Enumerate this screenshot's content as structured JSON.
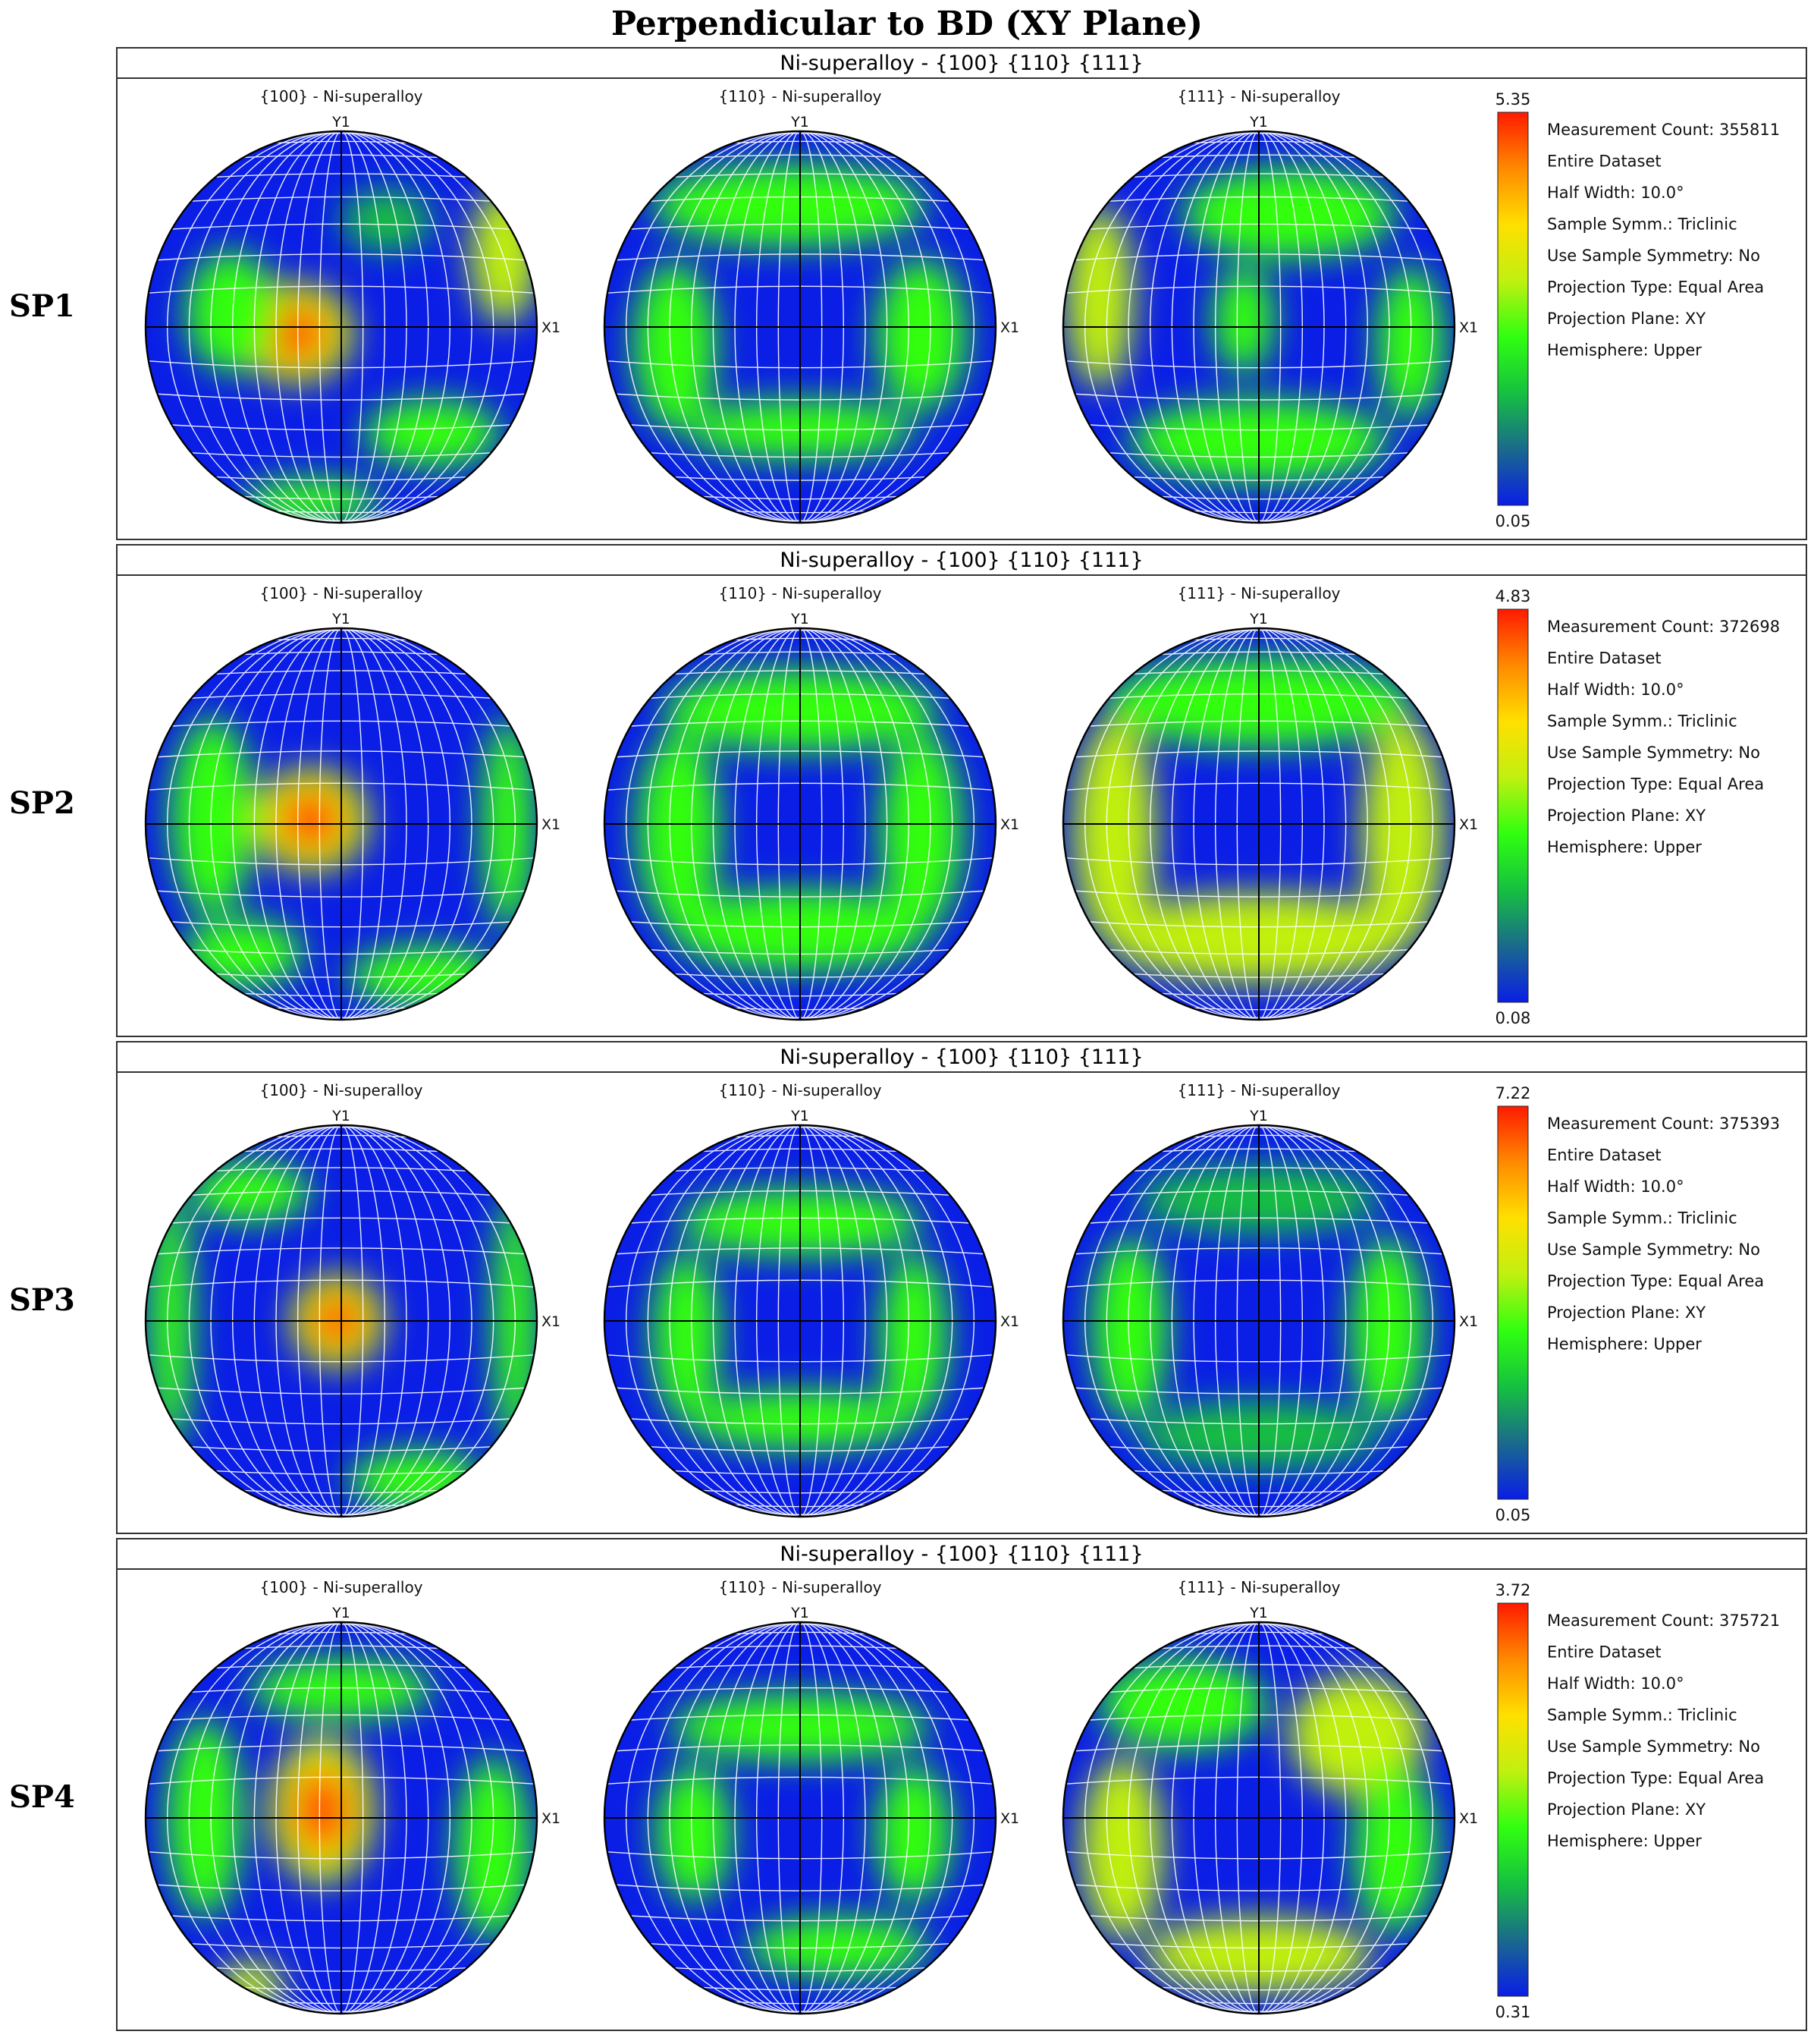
{
  "title": "Perpendicular to BD (XY Plane)",
  "panel_header": "Ni-superalloy - {100} {110} {111}",
  "pole_figure_titles": [
    "{100} - Ni-superalloy",
    "{110} - Ni-superalloy",
    "{111} - Ni-superalloy"
  ],
  "axis_labels": {
    "top": "Y1",
    "right": "X1"
  },
  "colorscale": [
    "#0a1ee6",
    "#1a6a8c",
    "#16c040",
    "#30ff10",
    "#c0f010",
    "#ffe000",
    "#ff8a00",
    "#ff1a00"
  ],
  "rows": [
    {
      "label": "SP1",
      "scale_max": "5.35",
      "scale_min": "0.05",
      "info": [
        "Measurement Count: 355811",
        "Entire Dataset",
        "Half Width: 10.0°",
        "Sample Symm.: Triclinic",
        "Use Sample Symmetry: No",
        "Projection Type: Equal Area",
        "Projection Plane: XY",
        "Hemisphere: Upper"
      ]
    },
    {
      "label": "SP2",
      "scale_max": "4.83",
      "scale_min": "0.08",
      "info": [
        "Measurement Count: 372698",
        "Entire Dataset",
        "Half Width: 10.0°",
        "Sample Symm.: Triclinic",
        "Use Sample Symmetry: No",
        "Projection Type: Equal Area",
        "Projection Plane: XY",
        "Hemisphere: Upper"
      ]
    },
    {
      "label": "SP3",
      "scale_max": "7.22",
      "scale_min": "0.05",
      "info": [
        "Measurement Count: 375393",
        "Entire Dataset",
        "Half Width: 10.0°",
        "Sample Symm.: Triclinic",
        "Use Sample Symmetry: No",
        "Projection Type: Equal Area",
        "Projection Plane: XY",
        "Hemisphere: Upper"
      ]
    },
    {
      "label": "SP4",
      "scale_max": "3.72",
      "scale_min": "0.31",
      "info": [
        "Measurement Count: 375721",
        "Entire Dataset",
        "Half Width: 10.0°",
        "Sample Symm.: Triclinic",
        "Use Sample Symmetry: No",
        "Projection Type: Equal Area",
        "Projection Plane: XY",
        "Hemisphere: Upper"
      ]
    }
  ]
}
